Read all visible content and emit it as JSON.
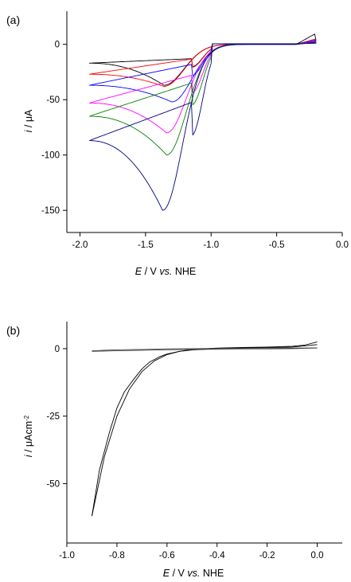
{
  "chart_data": [
    {
      "panel_label": "(a)",
      "type": "line",
      "xlabel": {
        "var": "E",
        "rest": " / V ",
        "vs": "vs.",
        "ref": " NHE"
      },
      "ylabel": {
        "var": "i",
        "rest": " / μA"
      },
      "xlim": [
        -2.1,
        0.0
      ],
      "ylim": [
        -170,
        30
      ],
      "xticks": [
        -2.0,
        -1.5,
        -1.0,
        -0.5,
        0.0
      ],
      "xtick_labels": [
        "-2.0",
        "-1.5",
        "-1.0",
        "-0.5",
        "0.0"
      ],
      "yticks": [
        0,
        -50,
        -100,
        -150
      ],
      "ytick_labels": [
        "0",
        "-50",
        "-100",
        "-150"
      ],
      "grid": false,
      "series": [
        {
          "color": "#000000",
          "peak_x": -1.36,
          "peak_y": -37,
          "start_y": -17,
          "end_y": 10
        },
        {
          "color": "#ff0000",
          "peak_x": -1.36,
          "peak_y": -38,
          "start_y": -27,
          "end_y": 5
        },
        {
          "color": "#0000ff",
          "peak_x": -1.3,
          "peak_y": -52,
          "start_y": -37,
          "end_y": 4
        },
        {
          "color": "#ff00ff",
          "peak_x": -1.34,
          "peak_y": -80,
          "start_y": -53,
          "end_y": 3
        },
        {
          "color": "#008000",
          "peak_x": -1.34,
          "peak_y": -100,
          "start_y": -65,
          "end_y": 2
        },
        {
          "color": "#000080",
          "peak_x": -1.37,
          "peak_y": -150,
          "start_y": -87,
          "end_y": 2
        }
      ]
    },
    {
      "panel_label": "(b)",
      "type": "line",
      "xlabel": {
        "var": "E",
        "rest": " / V ",
        "vs": "vs.",
        "ref": " NHE"
      },
      "ylabel": {
        "var": "i",
        "rest": " / μAcm",
        "sup": "-2"
      },
      "xlim": [
        -1.0,
        0.1
      ],
      "ylim": [
        -72,
        10
      ],
      "xticks": [
        -1.0,
        -0.8,
        -0.6,
        -0.4,
        -0.2,
        0.0
      ],
      "xtick_labels": [
        "-1.0",
        "-0.8",
        "-0.6",
        "-0.4",
        "-0.2",
        "0.0"
      ],
      "yticks": [
        0,
        -25,
        -50
      ],
      "ytick_labels": [
        "0",
        "-25",
        "-50"
      ],
      "grid": false,
      "series": [
        {
          "color": "#000000",
          "x": [
            -0.9,
            -0.85,
            -0.8,
            -0.75,
            -0.7,
            -0.65,
            -0.6,
            -0.55,
            -0.5,
            -0.4,
            -0.3,
            -0.2,
            -0.1,
            -0.05,
            0.0
          ],
          "y": [
            -62,
            -40,
            -25,
            -15,
            -8.5,
            -4.5,
            -2.2,
            -1.0,
            -0.3,
            0.2,
            0.4,
            0.6,
            0.9,
            1.3,
            2.5
          ]
        },
        {
          "color": "#000000",
          "x": [
            -0.9,
            -0.87,
            -0.83,
            -0.8,
            -0.77,
            -0.73,
            -0.7,
            -0.67,
            -0.63,
            -0.6,
            -0.55,
            -0.5,
            -0.4,
            -0.3,
            -0.2,
            -0.1,
            0.0
          ],
          "y": [
            -62,
            -45,
            -31,
            -22,
            -16,
            -11,
            -7.5,
            -5.0,
            -3.0,
            -2.0,
            -1.0,
            -0.5,
            0.0,
            0.2,
            0.4,
            0.6,
            1.5
          ]
        },
        {
          "color": "#444444",
          "x": [
            -0.9,
            -0.8,
            -0.7,
            -0.6,
            -0.5,
            -0.4,
            -0.3,
            -0.2,
            -0.1,
            0.0
          ],
          "y": [
            -0.8,
            -0.4,
            -0.3,
            -0.1,
            0.0,
            0.1,
            0.1,
            0.2,
            0.2,
            0.3
          ]
        },
        {
          "color": "#444444",
          "x": [
            0.0,
            -0.1,
            -0.2,
            -0.3,
            -0.4,
            -0.5,
            -0.6,
            -0.7,
            -0.8,
            -0.9
          ],
          "y": [
            0.2,
            0.0,
            -0.1,
            -0.1,
            -0.2,
            -0.3,
            -0.4,
            -0.6,
            -0.8,
            -1.0
          ]
        }
      ]
    }
  ]
}
